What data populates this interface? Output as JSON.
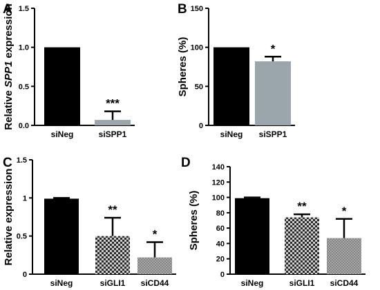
{
  "chart_data": [
    {
      "panel": "A",
      "type": "bar",
      "ylabel_prefix": "Relative ",
      "ylabel_italic": "SPP1",
      "ylabel_suffix": " expression",
      "ylim": [
        0,
        1.5
      ],
      "yticks": [
        0,
        0.5,
        1,
        1.5
      ],
      "ytick_labels": [
        "0.0",
        "0.5",
        "1.0",
        "1.5"
      ],
      "categories": [
        "siNeg",
        "siSPP1"
      ],
      "values": [
        1.0,
        0.07
      ],
      "errors": [
        0,
        0.11
      ],
      "significance": [
        "",
        "***"
      ],
      "fills": [
        "#000000",
        "#9aa6ab"
      ]
    },
    {
      "panel": "B",
      "type": "bar",
      "ylabel": "Spheres (%)",
      "ylim": [
        0,
        150
      ],
      "yticks": [
        0,
        50,
        100,
        150
      ],
      "ytick_labels": [
        "0",
        "50",
        "100",
        "150"
      ],
      "categories": [
        "siNeg",
        "siSPP1"
      ],
      "values": [
        100,
        82
      ],
      "errors": [
        0,
        6
      ],
      "significance": [
        "",
        "*"
      ],
      "fills": [
        "#000000",
        "#9aa6ab"
      ]
    },
    {
      "panel": "C",
      "type": "bar",
      "ylabel": "Relative expression",
      "ylim": [
        0,
        1.5
      ],
      "yticks": [
        0,
        0.5,
        1,
        1.5
      ],
      "ytick_labels": [
        "0",
        "0.5",
        "1",
        "1.5"
      ],
      "categories": [
        "siNeg",
        "siGLI1",
        "siCD44"
      ],
      "values": [
        0.99,
        0.5,
        0.22
      ],
      "errors": [
        0.01,
        0.24,
        0.2
      ],
      "significance": [
        "",
        "**",
        "*"
      ],
      "fills": [
        "#000000",
        "checker",
        "dots"
      ]
    },
    {
      "panel": "D",
      "type": "bar",
      "ylabel": "Spheres (%)",
      "ylim": [
        0,
        140
      ],
      "yticks": [
        0,
        20,
        40,
        60,
        80,
        100,
        120,
        140
      ],
      "ytick_labels": [
        "0",
        "20",
        "40",
        "60",
        "80",
        "100",
        "120",
        "140"
      ],
      "categories": [
        "siNeg",
        "siGLI1",
        "siCD44"
      ],
      "values": [
        99,
        74,
        47
      ],
      "errors": [
        1,
        4,
        25
      ],
      "significance": [
        "",
        "**",
        "*"
      ],
      "fills": [
        "#000000",
        "checker",
        "dots"
      ]
    }
  ]
}
